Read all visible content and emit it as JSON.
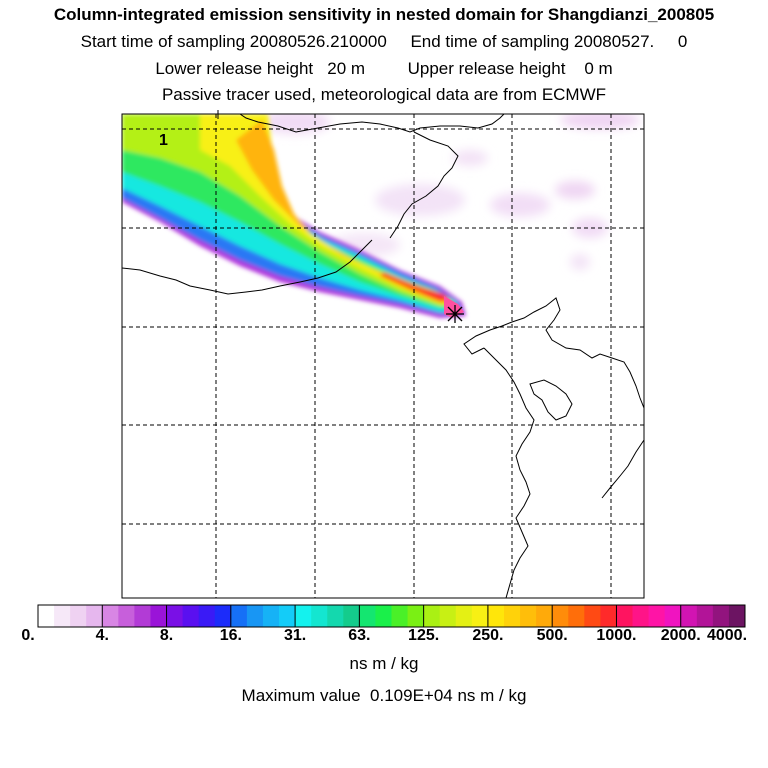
{
  "header": {
    "title": "Column-integrated emission sensitivity in nested domain for Shangdianzi_200805",
    "sampling": "Start time of sampling 20080526.210000     End time of sampling 20080527.     0",
    "release": "Lower release height   20 m         Upper release height    0 m",
    "note": "Passive tracer used, meteorological data are from ECMWF"
  },
  "map": {
    "contour_label": "1",
    "receptor_marker": "station-cross"
  },
  "colorbar": {
    "ticks": [
      "0.",
      "4.",
      "8.",
      "16.",
      "31.",
      "63.",
      "125.",
      "250.",
      "500.",
      "1000.",
      "2000.",
      "4000."
    ],
    "colors": [
      "#ffffff",
      "#f6e8f8",
      "#efd2f2",
      "#e6b7ee",
      "#d886e4",
      "#c75fdb",
      "#b23bd6",
      "#9a14d8",
      "#7a10e6",
      "#5a10f0",
      "#3a1af6",
      "#1c2cfa",
      "#1670f6",
      "#1896f4",
      "#16b2f6",
      "#14ccf8",
      "#14f2ee",
      "#14e6d0",
      "#14d8ae",
      "#14cc8c",
      "#14e670",
      "#1af04a",
      "#4af028",
      "#7af014",
      "#aaf014",
      "#c8f014",
      "#e4f014",
      "#f8f014",
      "#ffe60a",
      "#ffd20a",
      "#ffbe0a",
      "#ffaa0a",
      "#ff8c0a",
      "#ff6e0a",
      "#ff4a14",
      "#ff2a2a",
      "#ff1460",
      "#ff1488",
      "#ff14a6",
      "#f014c0",
      "#d214b2",
      "#b21498",
      "#92147e",
      "#6c1462"
    ],
    "units": "ns m / kg",
    "maximum": "Maximum value  0.109E+04 ns m / kg"
  }
}
